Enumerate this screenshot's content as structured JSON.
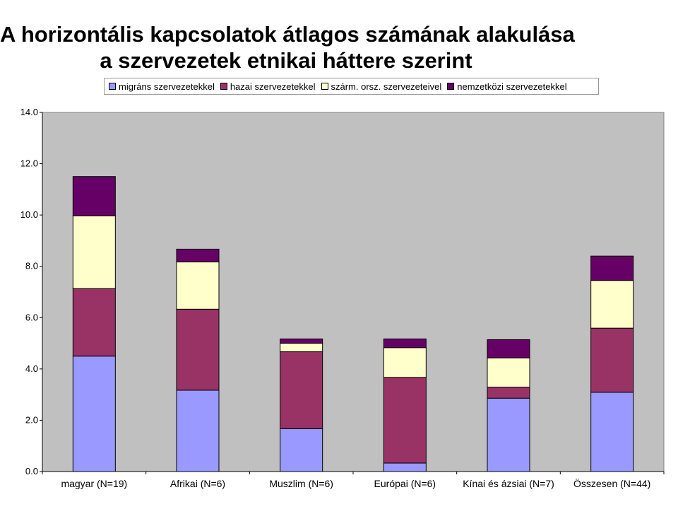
{
  "chart_data": {
    "type": "bar",
    "stacked": true,
    "title": "A horizontális kapcsolatok átlagos számának alakulása",
    "subtitle": "a szervezetek etnikai háttere szerint",
    "xlabel": "",
    "ylabel": "",
    "ylim": [
      0,
      14
    ],
    "yticks": [
      "0.0",
      "2.0",
      "4.0",
      "6.0",
      "8.0",
      "10.0",
      "12.0",
      "14.0"
    ],
    "grid": false,
    "legend_position": "top",
    "categories": [
      "magyar (N=19)",
      "Afrikai (N=6)",
      "Muszlim (N=6)",
      "Európai (N=6)",
      "Kínai és ázsiai (N=7)",
      "Összesen (N=44)"
    ],
    "series": [
      {
        "name": "migráns szervezetekkel",
        "color": "#9999ff",
        "values": [
          4.5,
          3.17,
          1.67,
          0.33,
          2.86,
          3.09
        ]
      },
      {
        "name": "hazai szervezetekkel",
        "color": "#993366",
        "values": [
          2.63,
          3.16,
          3.0,
          3.34,
          0.43,
          2.5
        ]
      },
      {
        "name": "szárm. orsz. szervezeteivel",
        "color": "#ffffcc",
        "values": [
          2.84,
          1.84,
          0.33,
          1.16,
          1.14,
          1.86
        ]
      },
      {
        "name": "nemzetközi szervezetekkel",
        "color": "#660066",
        "values": [
          1.53,
          0.5,
          0.17,
          0.34,
          0.71,
          0.95
        ]
      }
    ]
  },
  "colors": {
    "plot_background": "#c0c0c0",
    "bar_outline": "#000000"
  }
}
